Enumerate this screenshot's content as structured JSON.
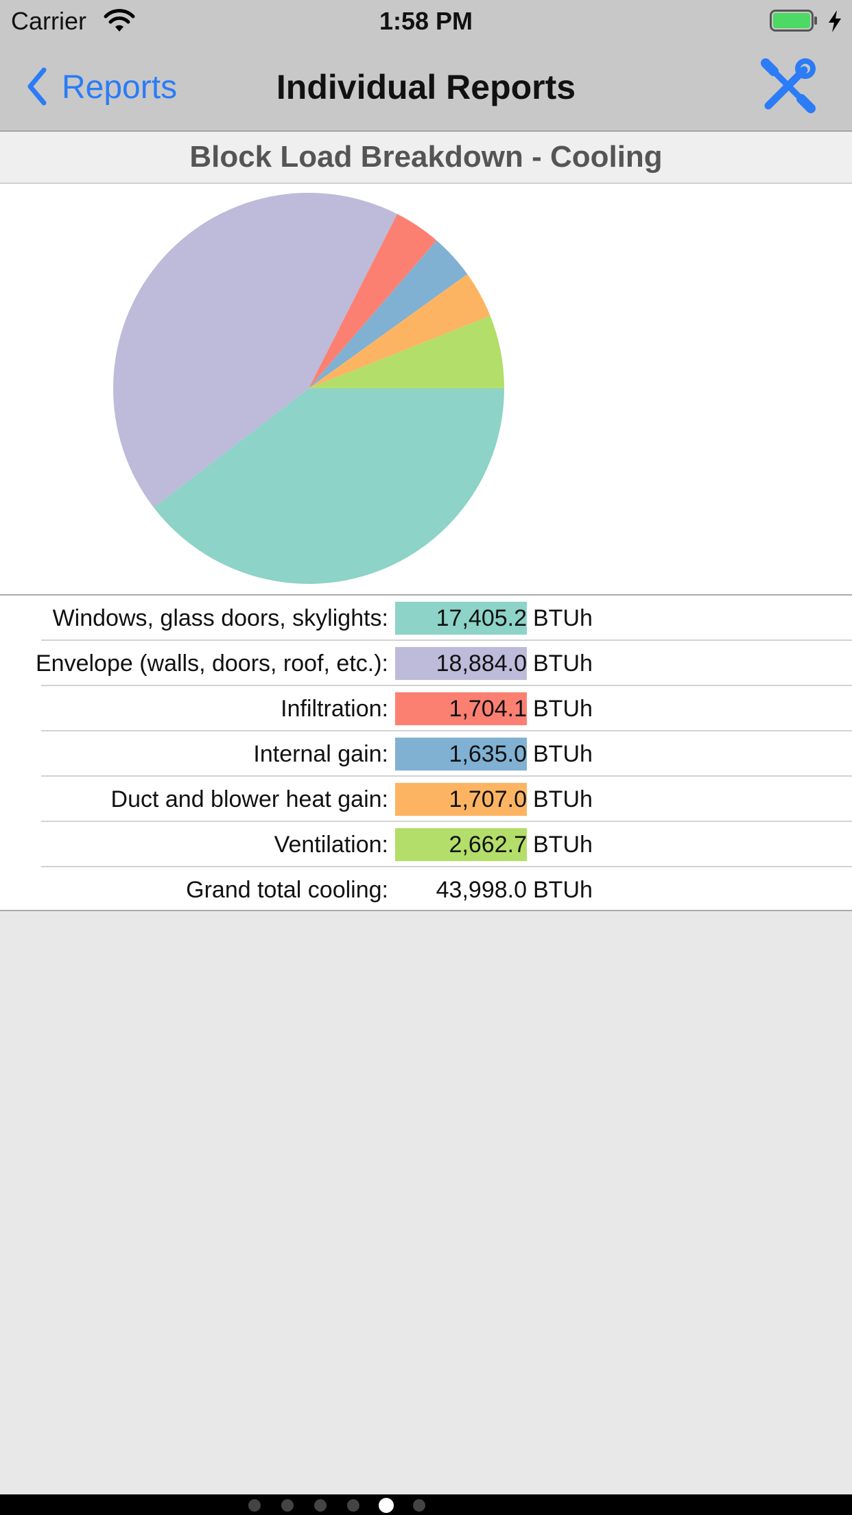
{
  "status_bar": {
    "carrier": "Carrier",
    "time": "1:58 PM",
    "wifi_icon": "wifi-icon",
    "battery_icon": "battery-full-icon",
    "charging_icon": "bolt-icon"
  },
  "nav": {
    "back_label": "Reports",
    "title": "Individual Reports",
    "tools_icon": "wrench-screwdriver-icon",
    "accent_color": "#2b7cf6"
  },
  "section": {
    "title": "Block Load Breakdown - Cooling"
  },
  "chart_data": {
    "type": "pie",
    "categories": [
      "Windows, glass doors, skylights",
      "Envelope (walls, doors, roof, etc.)",
      "Infiltration",
      "Internal gain",
      "Duct and blower heat gain",
      "Ventilation"
    ],
    "values": [
      17405.2,
      18884.0,
      1704.1,
      1635.0,
      1707.0,
      2662.7
    ],
    "colors": [
      "#8dd3c7",
      "#bebada",
      "#fb8072",
      "#80b1d3",
      "#fdb462",
      "#b3de69"
    ],
    "legend": "none"
  },
  "table": {
    "unit": "BTUh",
    "rows": [
      {
        "label": "Windows, glass doors, skylights:",
        "value": "17,405.2",
        "color": "#8dd3c7"
      },
      {
        "label": "Envelope (walls, doors, roof, etc.):",
        "value": "18,884.0",
        "color": "#bebada"
      },
      {
        "label": "Infiltration:",
        "value": "1,704.1",
        "color": "#fb8072"
      },
      {
        "label": "Internal gain:",
        "value": "1,635.0",
        "color": "#80b1d3"
      },
      {
        "label": "Duct and blower heat gain:",
        "value": "1,707.0",
        "color": "#fdb462"
      },
      {
        "label": "Ventilation:",
        "value": "2,662.7",
        "color": "#b3de69"
      },
      {
        "label": "Grand total cooling:",
        "value": "43,998.0",
        "color": ""
      }
    ]
  },
  "pager": {
    "page_count": 6,
    "current_page": 5
  }
}
